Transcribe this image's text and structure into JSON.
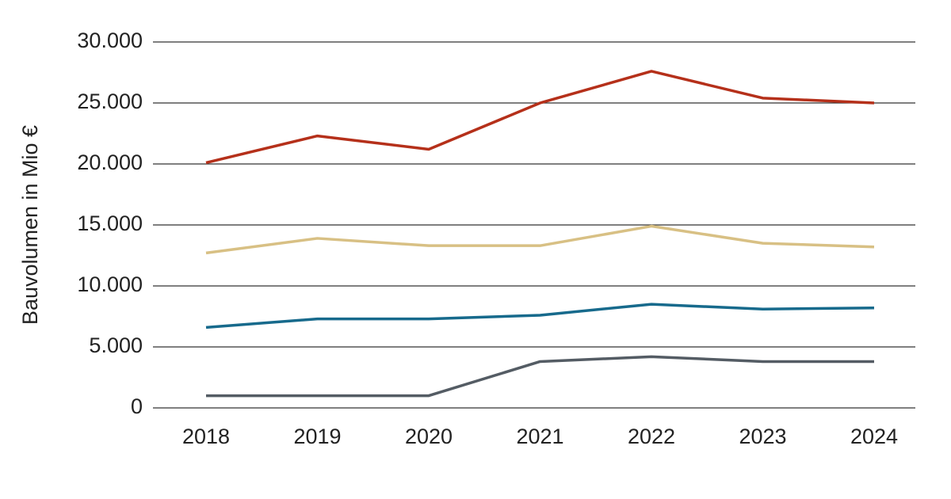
{
  "chart_data": {
    "type": "line",
    "y_label": "Bauvolumen in Mio €",
    "categories": [
      "2018",
      "2019",
      "2020",
      "2021",
      "2022",
      "2023",
      "2024"
    ],
    "series": [
      {
        "color": "#b5301a",
        "values": [
          20100,
          22300,
          21200,
          25000,
          27600,
          25400,
          25000
        ]
      },
      {
        "color": "#d8c084",
        "values": [
          12700,
          13900,
          13300,
          13300,
          14900,
          13500,
          13200
        ]
      },
      {
        "color": "#176a8c",
        "values": [
          6600,
          7300,
          7300,
          7600,
          8500,
          8100,
          8200
        ]
      },
      {
        "color": "#545c64",
        "values": [
          1000,
          1000,
          1000,
          3800,
          4200,
          3800,
          3800
        ]
      }
    ],
    "ylim": [
      0,
      30000
    ],
    "yticks": [
      0,
      {
        "value": 5000,
        "label": "5.000"
      },
      {
        "value": 10000,
        "label": "10.000"
      },
      {
        "value": 15000,
        "label": "15.000"
      },
      {
        "value": 20000,
        "label": "20.000"
      },
      {
        "value": 25000,
        "label": "25.000"
      },
      {
        "value": 30000,
        "label": "30.000"
      }
    ],
    "grid": true
  }
}
